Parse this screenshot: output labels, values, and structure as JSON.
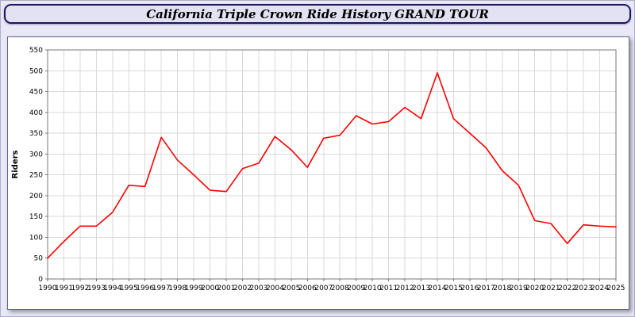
{
  "header": {
    "title": "California Triple Crown Ride History GRAND TOUR"
  },
  "colors": {
    "page_bg": "#e8e8f7",
    "titlebar_bg": "#e2e2f2",
    "titlebar_border": "#17175e",
    "plot_bg": "#ffffff",
    "grid": "#d9d9d9",
    "axis": "#777777",
    "tick_text": "#000000",
    "line": "#ff0000"
  },
  "chart_data": {
    "type": "line",
    "title": "California Triple Crown Ride History GRAND TOUR",
    "xlabel": "",
    "ylabel": "Riders",
    "ylim": [
      0,
      550
    ],
    "ytick_step": 50,
    "grid": true,
    "legend_position": "none",
    "line_color": "#ff0000",
    "x": [
      1990,
      1991,
      1992,
      1993,
      1994,
      1995,
      1996,
      1997,
      1998,
      1999,
      2000,
      2001,
      2002,
      2003,
      2004,
      2005,
      2006,
      2007,
      2008,
      2009,
      2010,
      2011,
      2012,
      2013,
      2014,
      2015,
      2016,
      2017,
      2018,
      2019,
      2020,
      2021,
      2022,
      2023,
      2024,
      2025
    ],
    "series": [
      {
        "name": "Riders",
        "values": [
          50,
          90,
          127,
          127,
          160,
          225,
          222,
          340,
          285,
          250,
          213,
          210,
          265,
          278,
          342,
          310,
          268,
          338,
          345,
          392,
          372,
          378,
          412,
          385,
          495,
          385,
          350,
          315,
          260,
          225,
          140,
          133,
          85,
          130,
          127,
          125
        ]
      }
    ]
  }
}
